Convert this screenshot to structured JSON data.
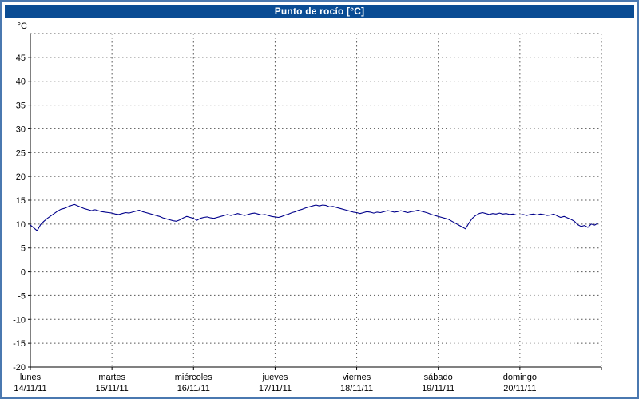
{
  "window": {
    "border_color": "#4a78b0",
    "titlebar_color": "#0a4c94"
  },
  "chart_data": {
    "type": "line",
    "title": "Punto de rocío [°C]",
    "unit_label": "°C",
    "line_color": "#00008b",
    "grid": true,
    "ylim": [
      -20,
      50
    ],
    "ytick_step": 5,
    "ytick_label_max": 45,
    "xlabel": "",
    "ylabel": "°C",
    "days": [
      {
        "name": "lunes",
        "date": "14/11/11",
        "values": [
          9.8,
          9.2,
          8.6,
          9.9,
          10.6,
          11.2,
          11.7,
          12.2,
          12.7,
          13.1,
          13.3,
          13.6,
          13.9,
          14.1,
          13.8,
          13.5,
          13.2,
          13.0,
          12.8,
          13.0,
          12.8,
          12.6,
          12.5,
          12.4
        ]
      },
      {
        "name": "martes",
        "date": "15/11/11",
        "values": [
          12.3,
          12.1,
          12.0,
          12.2,
          12.4,
          12.3,
          12.5,
          12.7,
          12.9,
          12.6,
          12.4,
          12.2,
          12.0,
          11.8,
          11.6,
          11.3,
          11.1,
          10.9,
          10.7,
          10.6,
          10.9,
          11.3,
          11.6,
          11.4
        ]
      },
      {
        "name": "miércoles",
        "date": "16/11/11",
        "values": [
          11.2,
          10.8,
          11.2,
          11.4,
          11.5,
          11.3,
          11.2,
          11.4,
          11.6,
          11.8,
          12.0,
          11.8,
          12.0,
          12.2,
          12.0,
          11.8,
          12.0,
          12.2,
          12.3,
          12.1,
          11.9,
          12.0,
          11.8,
          11.6
        ]
      },
      {
        "name": "jueves",
        "date": "17/11/11",
        "values": [
          11.5,
          11.4,
          11.6,
          11.9,
          12.1,
          12.4,
          12.6,
          12.9,
          13.1,
          13.4,
          13.6,
          13.8,
          14.0,
          13.8,
          14.0,
          13.9,
          13.6,
          13.7,
          13.5,
          13.3,
          13.1,
          12.9,
          12.7,
          12.5
        ]
      },
      {
        "name": "viernes",
        "date": "18/11/11",
        "values": [
          12.4,
          12.2,
          12.4,
          12.6,
          12.5,
          12.3,
          12.5,
          12.4,
          12.6,
          12.8,
          12.7,
          12.5,
          12.6,
          12.8,
          12.6,
          12.4,
          12.6,
          12.7,
          12.9,
          12.7,
          12.5,
          12.3,
          12.0,
          11.8
        ]
      },
      {
        "name": "sábado",
        "date": "19/11/11",
        "values": [
          11.6,
          11.4,
          11.2,
          11.0,
          10.6,
          10.2,
          9.8,
          9.4,
          9.0,
          10.2,
          11.2,
          11.8,
          12.2,
          12.4,
          12.2,
          12.0,
          12.2,
          12.1,
          12.3,
          12.1,
          12.2,
          12.0,
          12.1,
          11.9
        ]
      },
      {
        "name": "domingo",
        "date": "20/11/11",
        "values": [
          11.9,
          12.0,
          11.8,
          12.0,
          12.1,
          11.9,
          12.1,
          12.0,
          11.8,
          11.9,
          12.1,
          11.7,
          11.4,
          11.6,
          11.3,
          11.0,
          10.6,
          9.9,
          9.5,
          9.7,
          9.3,
          10.0,
          9.8,
          10.2
        ]
      }
    ]
  }
}
